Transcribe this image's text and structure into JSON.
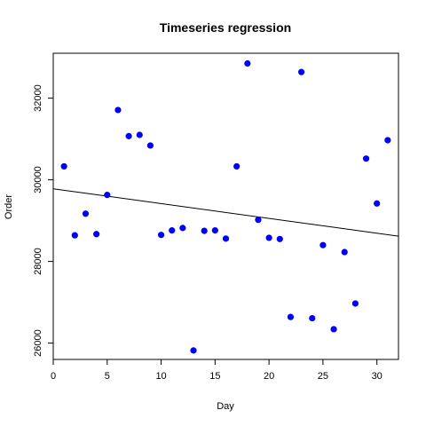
{
  "chart_data": {
    "type": "scatter",
    "title": "Timeseries regression",
    "xlabel": "Day",
    "ylabel": "Order",
    "xlim": [
      0,
      32
    ],
    "ylim": [
      25600,
      33100
    ],
    "x_ticks": [
      0,
      5,
      10,
      15,
      20,
      25,
      30
    ],
    "y_ticks": [
      26000,
      28000,
      30000,
      32000
    ],
    "grid": false,
    "point_color": "#0000ff",
    "line_color": "#000000",
    "series": [
      {
        "x": [
          1,
          2,
          3,
          4,
          5,
          6,
          7,
          8,
          9,
          10,
          11,
          12,
          13,
          14,
          15,
          16,
          17,
          18,
          19,
          20,
          21,
          22,
          23,
          24,
          25,
          26,
          27,
          28,
          29,
          30,
          31
        ],
        "y": [
          30330,
          28640,
          29170,
          28670,
          29630,
          31710,
          31070,
          31100,
          30840,
          28650,
          28760,
          28820,
          25820,
          28750,
          28760,
          28560,
          30330,
          32850,
          29020,
          28580,
          28550,
          26640,
          32640,
          26610,
          28400,
          26340,
          28230,
          26970,
          30520,
          29420,
          30970
        ]
      }
    ],
    "regression_line": {
      "x": [
        0,
        32
      ],
      "y": [
        29780,
        28620
      ]
    }
  }
}
